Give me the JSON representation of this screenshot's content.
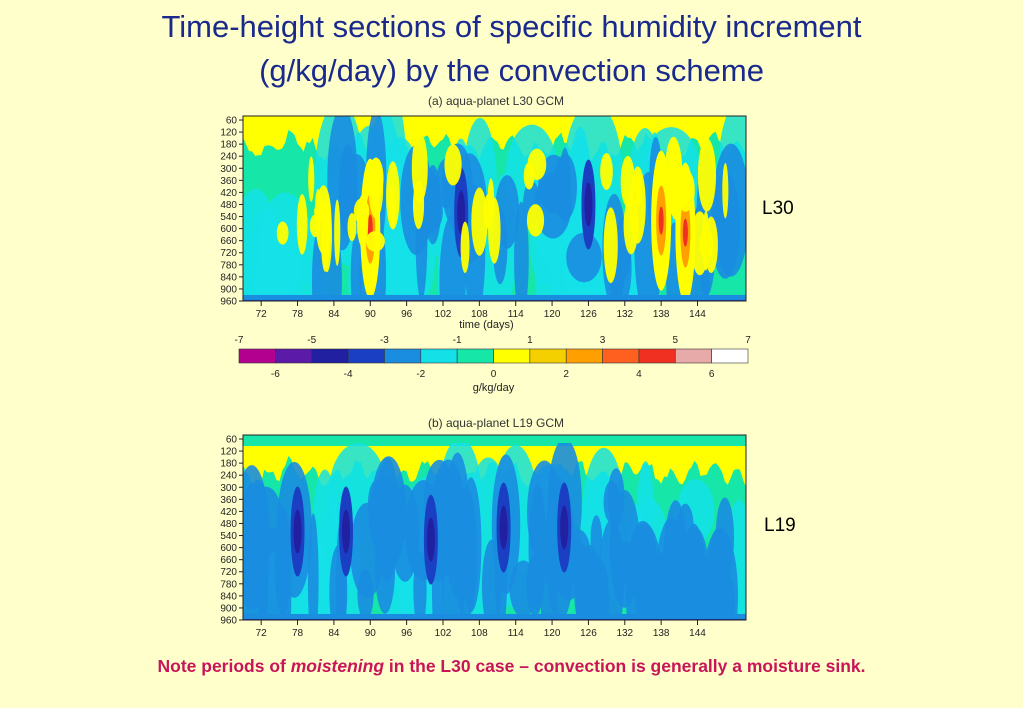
{
  "title_line1": "Time-height sections of specific humidity increment",
  "title_line2": "(g/kg/day) by the convection scheme",
  "panel_a_title": "(a) aqua-planet L30 GCM",
  "panel_b_title": "(b) aqua-planet L19 GCM",
  "label_l30": "L30",
  "label_l19": "L19",
  "note_part1": "Note periods of ",
  "note_emph": "moistening",
  "note_part2": " in the L30 case – convection is generally a moisture sink.",
  "chart_data": [
    {
      "type": "heatmap",
      "title": "(a) aqua-planet L30 GCM",
      "xlabel": "time (days)",
      "ylabel": "",
      "x_ticks": [
        72,
        78,
        84,
        90,
        96,
        102,
        108,
        114,
        120,
        126,
        132,
        138,
        144
      ],
      "y_ticks": [
        60,
        120,
        180,
        240,
        300,
        360,
        420,
        480,
        540,
        600,
        660,
        720,
        780,
        840,
        900,
        960
      ],
      "xlim": [
        69,
        152
      ],
      "ylim": [
        960,
        40
      ],
      "moistening_features": [
        {
          "day": 90,
          "level": 600,
          "value": 3
        },
        {
          "day": 138,
          "level": 560,
          "value": 4
        },
        {
          "day": 142,
          "level": 620,
          "value": 2
        }
      ],
      "drying_features": [
        {
          "day": 105,
          "level": 520,
          "value": -4
        },
        {
          "day": 126,
          "level": 480,
          "value": -4
        }
      ]
    },
    {
      "type": "heatmap",
      "title": "(b) aqua-planet L19 GCM",
      "xlabel": "",
      "ylabel": "",
      "x_ticks": [
        72,
        78,
        84,
        90,
        96,
        102,
        108,
        114,
        120,
        126,
        132,
        138,
        144
      ],
      "y_ticks": [
        60,
        120,
        180,
        240,
        300,
        360,
        420,
        480,
        540,
        600,
        660,
        720,
        780,
        840,
        900,
        960
      ],
      "xlim": [
        69,
        152
      ],
      "ylim": [
        960,
        40
      ],
      "drying_features": [
        {
          "day": 78,
          "level": 520,
          "value": -4
        },
        {
          "day": 86,
          "level": 520,
          "value": -4
        },
        {
          "day": 100,
          "level": 560,
          "value": -4
        },
        {
          "day": 112,
          "level": 500,
          "value": -3
        },
        {
          "day": 122,
          "level": 500,
          "value": -3
        }
      ]
    }
  ],
  "colorbar": {
    "label": "g/kg/day",
    "top_labels": [
      "-7",
      "-5",
      "-3",
      "-1",
      "1",
      "3",
      "5",
      "7"
    ],
    "bottom_labels": [
      "-6",
      "-4",
      "-2",
      "0",
      "2",
      "4",
      "6"
    ],
    "colors": [
      "#b3008f",
      "#5c1aa8",
      "#2020a0",
      "#1a3fc2",
      "#1a8de0",
      "#14e0e8",
      "#16e6a8",
      "#ffff00",
      "#f5d000",
      "#ffa000",
      "#ff6020",
      "#f03020",
      "#e8aaa8",
      "#ffffff"
    ]
  }
}
